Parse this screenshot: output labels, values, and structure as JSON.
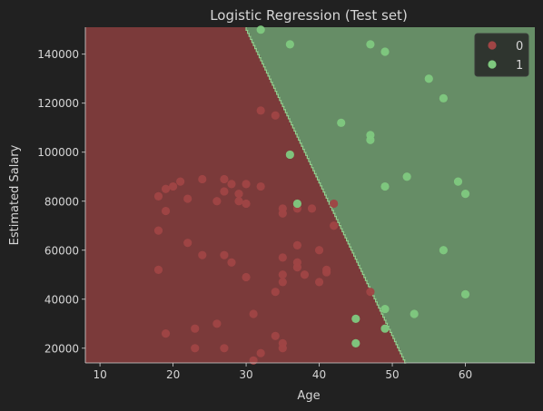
{
  "chart_data": {
    "type": "scatter",
    "title": "Logistic Regression (Test set)",
    "xlabel": "Age",
    "ylabel": "Estimated Salary",
    "xlim": [
      8,
      69.5
    ],
    "ylim": [
      14000,
      151000
    ],
    "xticks": [
      10,
      20,
      30,
      40,
      50,
      60
    ],
    "yticks": [
      20000,
      40000,
      60000,
      80000,
      100000,
      120000,
      140000
    ],
    "grid": false,
    "legend_position": "top-right",
    "decision_boundary": {
      "description": "straight line separating regions",
      "points": [
        [
          30.0,
          151000
        ],
        [
          51.9,
          14000
        ]
      ]
    },
    "regions": [
      {
        "label": "0",
        "color": "#7b3a3a"
      },
      {
        "label": "1",
        "color": "#668d66"
      }
    ],
    "series": [
      {
        "name": "0",
        "color": "#a04545",
        "points": [
          [
            32,
            117000
          ],
          [
            34,
            115000
          ],
          [
            18,
            82000
          ],
          [
            19,
            85000
          ],
          [
            20,
            86000
          ],
          [
            21,
            88000
          ],
          [
            22,
            81000
          ],
          [
            24,
            89000
          ],
          [
            26,
            80000
          ],
          [
            27,
            89000
          ],
          [
            27,
            84000
          ],
          [
            28,
            87000
          ],
          [
            29,
            83000
          ],
          [
            29,
            80000
          ],
          [
            30,
            87000
          ],
          [
            30,
            79000
          ],
          [
            32,
            86000
          ],
          [
            35,
            77000
          ],
          [
            35,
            75000
          ],
          [
            37,
            77000
          ],
          [
            39,
            77000
          ],
          [
            42,
            79000
          ],
          [
            18,
            68000
          ],
          [
            19,
            76000
          ],
          [
            22,
            63000
          ],
          [
            24,
            58000
          ],
          [
            27,
            58000
          ],
          [
            28,
            55000
          ],
          [
            30,
            49000
          ],
          [
            35,
            57000
          ],
          [
            37,
            62000
          ],
          [
            37,
            55000
          ],
          [
            37,
            53000
          ],
          [
            38,
            50000
          ],
          [
            40,
            60000
          ],
          [
            41,
            52000
          ],
          [
            41,
            51000
          ],
          [
            40,
            47000
          ],
          [
            42,
            70000
          ],
          [
            34,
            43000
          ],
          [
            35,
            50000
          ],
          [
            35,
            47000
          ],
          [
            47,
            43000
          ],
          [
            18,
            52000
          ],
          [
            19,
            26000
          ],
          [
            23,
            28000
          ],
          [
            23,
            20000
          ],
          [
            26,
            30000
          ],
          [
            27,
            20000
          ],
          [
            31,
            34000
          ],
          [
            32,
            18000
          ],
          [
            34,
            25000
          ],
          [
            35,
            22000
          ],
          [
            35,
            20000
          ],
          [
            31,
            15000
          ]
        ]
      },
      {
        "name": "1",
        "color": "#7fc97f",
        "points": [
          [
            32,
            150000
          ],
          [
            36,
            144000
          ],
          [
            47,
            144000
          ],
          [
            49,
            141000
          ],
          [
            55,
            130000
          ],
          [
            57,
            122000
          ],
          [
            43,
            112000
          ],
          [
            47,
            107000
          ],
          [
            47,
            105000
          ],
          [
            36,
            99000
          ],
          [
            52,
            90000
          ],
          [
            59,
            88000
          ],
          [
            49,
            86000
          ],
          [
            60,
            83000
          ],
          [
            37,
            79000
          ],
          [
            57,
            60000
          ],
          [
            60,
            42000
          ],
          [
            49,
            36000
          ],
          [
            53,
            34000
          ],
          [
            45,
            32000
          ],
          [
            49,
            28000
          ],
          [
            45,
            22000
          ]
        ]
      }
    ]
  }
}
